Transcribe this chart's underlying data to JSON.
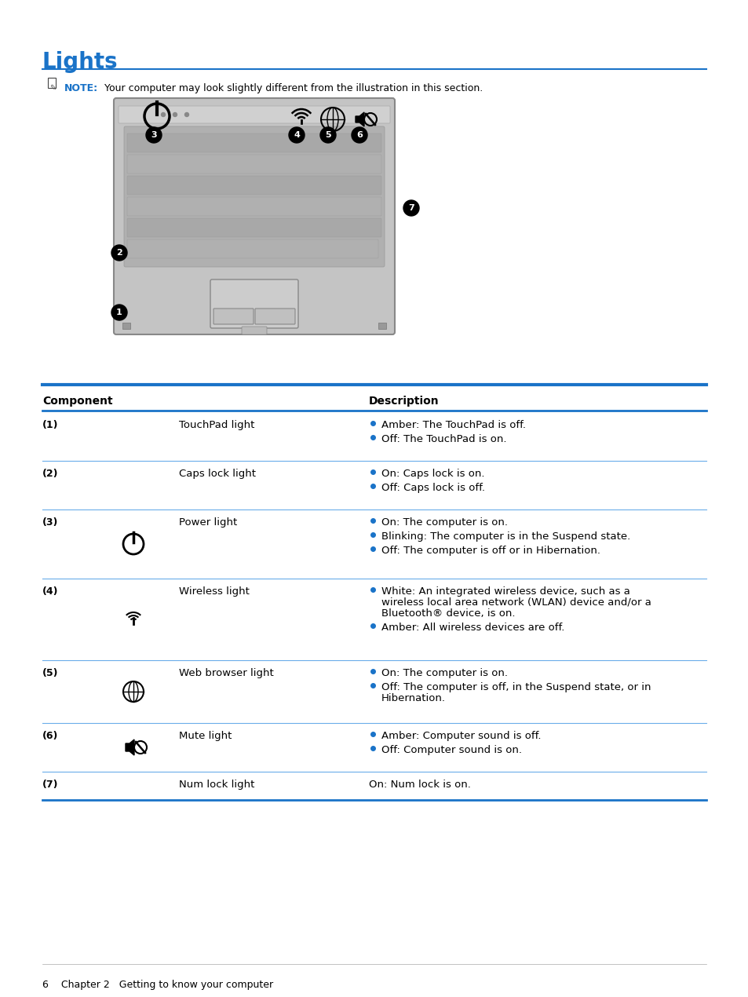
{
  "title": "Lights",
  "note_color": "#0070c0",
  "blue_line_color": "#1a73c8",
  "light_line_color": "#6aadea",
  "background_color": "#ffffff",
  "footer_text": "6    Chapter 2   Getting to know your computer",
  "table_rows": [
    {
      "num": "(1)",
      "icon": null,
      "component": "TouchPad light",
      "descriptions": [
        [
          "Amber: The TouchPad is off."
        ],
        [
          "Off: The TouchPad is on."
        ]
      ]
    },
    {
      "num": "(2)",
      "icon": null,
      "component": "Caps lock light",
      "descriptions": [
        [
          "On: Caps lock is on."
        ],
        [
          "Off: Caps lock is off."
        ]
      ]
    },
    {
      "num": "(3)",
      "icon": "power",
      "component": "Power light",
      "descriptions": [
        [
          "On: The computer is on."
        ],
        [
          "Blinking: The computer is in the Suspend state."
        ],
        [
          "Off: The computer is off or in Hibernation."
        ]
      ]
    },
    {
      "num": "(4)",
      "icon": "wireless",
      "component": "Wireless light",
      "descriptions": [
        [
          "White: An integrated wireless device, such as a",
          "wireless local area network (WLAN) device and/or a",
          "Bluetooth® device, is on."
        ],
        [
          "Amber: All wireless devices are off."
        ]
      ]
    },
    {
      "num": "(5)",
      "icon": "web",
      "component": "Web browser light",
      "descriptions": [
        [
          "On: The computer is on."
        ],
        [
          "Off: The computer is off, in the Suspend state, or in",
          "Hibernation."
        ]
      ]
    },
    {
      "num": "(6)",
      "icon": "mute",
      "component": "Mute light",
      "descriptions": [
        [
          "Amber: Computer sound is off."
        ],
        [
          "Off: Computer sound is on."
        ]
      ]
    },
    {
      "num": "(7)",
      "icon": null,
      "component": "Num lock light",
      "descriptions": [
        [
          "On: Num lock is on."
        ]
      ],
      "no_bullet": true
    }
  ]
}
